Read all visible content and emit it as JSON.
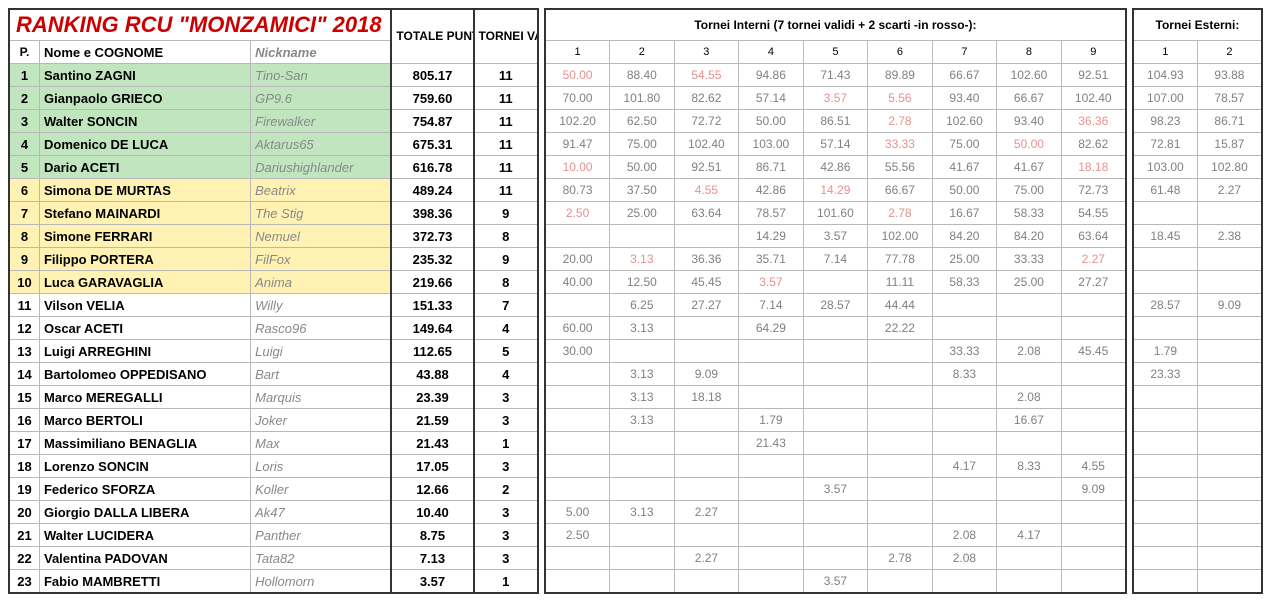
{
  "title": "RANKING RCU \"MONZAMICI\" 2018",
  "headers": {
    "totale_punti": "TOTALE PUNTI",
    "tornei_validi": "TORNEI VALIDI",
    "internal_caption": "Tornei Interni (7 tornei validi + 2 scarti -in rosso-):",
    "external_caption": "Tornei Esterni:",
    "pos": "P.",
    "name": "Nome e COGNOME",
    "nick": "Nickname"
  },
  "internal_cols": [
    "1",
    "2",
    "3",
    "4",
    "5",
    "6",
    "7",
    "8",
    "9"
  ],
  "external_cols": [
    "1",
    "2"
  ],
  "colors": {
    "title": "#cc0000",
    "green_bg": "#c1e6bf",
    "yellow_bg": "#fff2b3",
    "grey_text": "#808080",
    "scarto_text": "#e89090",
    "nick_text": "#888888",
    "border": "#b8b8b8"
  },
  "rows": [
    {
      "p": 1,
      "name": "Santino ZAGNI",
      "nick": "Tino-San",
      "pts": "805.17",
      "validi": "11",
      "hl": "green",
      "int": [
        {
          "v": "50.00",
          "s": 1
        },
        {
          "v": "88.40"
        },
        {
          "v": "54.55",
          "s": 1
        },
        {
          "v": "94.86"
        },
        {
          "v": "71.43"
        },
        {
          "v": "89.89"
        },
        {
          "v": "66.67"
        },
        {
          "v": "102.60"
        },
        {
          "v": "92.51"
        }
      ],
      "ext": [
        {
          "v": "104.93"
        },
        {
          "v": "93.88"
        }
      ]
    },
    {
      "p": 2,
      "name": "Gianpaolo GRIECO",
      "nick": "GP9.6",
      "pts": "759.60",
      "validi": "11",
      "hl": "green",
      "int": [
        {
          "v": "70.00"
        },
        {
          "v": "101.80"
        },
        {
          "v": "82.62"
        },
        {
          "v": "57.14"
        },
        {
          "v": "3.57",
          "s": 1
        },
        {
          "v": "5.56",
          "s": 1
        },
        {
          "v": "93.40"
        },
        {
          "v": "66.67"
        },
        {
          "v": "102.40"
        }
      ],
      "ext": [
        {
          "v": "107.00"
        },
        {
          "v": "78.57"
        }
      ]
    },
    {
      "p": 3,
      "name": "Walter SONCIN",
      "nick": "Firewalker",
      "pts": "754.87",
      "validi": "11",
      "hl": "green",
      "int": [
        {
          "v": "102.20"
        },
        {
          "v": "62.50"
        },
        {
          "v": "72.72"
        },
        {
          "v": "50.00"
        },
        {
          "v": "86.51"
        },
        {
          "v": "2.78",
          "s": 1
        },
        {
          "v": "102.60"
        },
        {
          "v": "93.40"
        },
        {
          "v": "36.36",
          "s": 1
        }
      ],
      "ext": [
        {
          "v": "98.23"
        },
        {
          "v": "86.71"
        }
      ]
    },
    {
      "p": 4,
      "name": "Domenico DE LUCA",
      "nick": "Aktarus65",
      "pts": "675.31",
      "validi": "11",
      "hl": "green",
      "int": [
        {
          "v": "91.47"
        },
        {
          "v": "75.00"
        },
        {
          "v": "102.40"
        },
        {
          "v": "103.00"
        },
        {
          "v": "57.14"
        },
        {
          "v": "33.33",
          "s": 1
        },
        {
          "v": "75.00"
        },
        {
          "v": "50.00",
          "s": 1
        },
        {
          "v": "82.62"
        }
      ],
      "ext": [
        {
          "v": "72.81"
        },
        {
          "v": "15.87"
        }
      ]
    },
    {
      "p": 5,
      "name": "Dario ACETI",
      "nick": "Dariushighlander",
      "pts": "616.78",
      "validi": "11",
      "hl": "green",
      "int": [
        {
          "v": "10.00",
          "s": 1
        },
        {
          "v": "50.00"
        },
        {
          "v": "92.51"
        },
        {
          "v": "86.71"
        },
        {
          "v": "42.86"
        },
        {
          "v": "55.56"
        },
        {
          "v": "41.67"
        },
        {
          "v": "41.67"
        },
        {
          "v": "18.18",
          "s": 1
        }
      ],
      "ext": [
        {
          "v": "103.00"
        },
        {
          "v": "102.80"
        }
      ]
    },
    {
      "p": 6,
      "name": "Simona DE MURTAS",
      "nick": "Beatrix",
      "pts": "489.24",
      "validi": "11",
      "hl": "yellow",
      "int": [
        {
          "v": "80.73"
        },
        {
          "v": "37.50"
        },
        {
          "v": "4.55",
          "s": 1
        },
        {
          "v": "42.86"
        },
        {
          "v": "14.29",
          "s": 1
        },
        {
          "v": "66.67"
        },
        {
          "v": "50.00"
        },
        {
          "v": "75.00"
        },
        {
          "v": "72.73"
        }
      ],
      "ext": [
        {
          "v": "61.48"
        },
        {
          "v": "2.27"
        }
      ]
    },
    {
      "p": 7,
      "name": "Stefano MAINARDI",
      "nick": "The Stig",
      "pts": "398.36",
      "validi": "9",
      "hl": "yellow",
      "int": [
        {
          "v": "2.50",
          "s": 1
        },
        {
          "v": "25.00"
        },
        {
          "v": "63.64"
        },
        {
          "v": "78.57"
        },
        {
          "v": "101.60"
        },
        {
          "v": "2.78",
          "s": 1
        },
        {
          "v": "16.67"
        },
        {
          "v": "58.33"
        },
        {
          "v": "54.55"
        }
      ],
      "ext": [
        {
          "v": ""
        },
        {
          "v": ""
        }
      ]
    },
    {
      "p": 8,
      "name": "Simone FERRARI",
      "nick": "Nemuel",
      "pts": "372.73",
      "validi": "8",
      "hl": "yellow",
      "int": [
        {
          "v": ""
        },
        {
          "v": ""
        },
        {
          "v": ""
        },
        {
          "v": "14.29"
        },
        {
          "v": "3.57"
        },
        {
          "v": "102.00"
        },
        {
          "v": "84.20"
        },
        {
          "v": "84.20"
        },
        {
          "v": "63.64"
        }
      ],
      "ext": [
        {
          "v": "18.45"
        },
        {
          "v": "2.38"
        }
      ]
    },
    {
      "p": 9,
      "name": "Filippo PORTERA",
      "nick": "FilFox",
      "pts": "235.32",
      "validi": "9",
      "hl": "yellow",
      "int": [
        {
          "v": "20.00"
        },
        {
          "v": "3.13",
          "s": 1
        },
        {
          "v": "36.36"
        },
        {
          "v": "35.71"
        },
        {
          "v": "7.14"
        },
        {
          "v": "77.78"
        },
        {
          "v": "25.00"
        },
        {
          "v": "33.33"
        },
        {
          "v": "2.27",
          "s": 1
        }
      ],
      "ext": [
        {
          "v": ""
        },
        {
          "v": ""
        }
      ]
    },
    {
      "p": 10,
      "name": "Luca GARAVAGLIA",
      "nick": "Anima",
      "pts": "219.66",
      "validi": "8",
      "hl": "yellow",
      "int": [
        {
          "v": "40.00"
        },
        {
          "v": "12.50"
        },
        {
          "v": "45.45"
        },
        {
          "v": "3.57",
          "s": 1
        },
        {
          "v": ""
        },
        {
          "v": "11.11"
        },
        {
          "v": "58.33"
        },
        {
          "v": "25.00"
        },
        {
          "v": "27.27"
        }
      ],
      "ext": [
        {
          "v": ""
        },
        {
          "v": ""
        }
      ]
    },
    {
      "p": 11,
      "name": "Vilson VELIA",
      "nick": "Willy",
      "pts": "151.33",
      "validi": "7",
      "hl": "",
      "int": [
        {
          "v": ""
        },
        {
          "v": "6.25"
        },
        {
          "v": "27.27"
        },
        {
          "v": "7.14"
        },
        {
          "v": "28.57"
        },
        {
          "v": "44.44"
        },
        {
          "v": ""
        },
        {
          "v": ""
        },
        {
          "v": ""
        }
      ],
      "ext": [
        {
          "v": "28.57"
        },
        {
          "v": "9.09"
        }
      ]
    },
    {
      "p": 12,
      "name": "Oscar ACETI",
      "nick": "Rasco96",
      "pts": "149.64",
      "validi": "4",
      "hl": "",
      "int": [
        {
          "v": "60.00"
        },
        {
          "v": "3.13"
        },
        {
          "v": ""
        },
        {
          "v": "64.29"
        },
        {
          "v": ""
        },
        {
          "v": "22.22"
        },
        {
          "v": ""
        },
        {
          "v": ""
        },
        {
          "v": ""
        }
      ],
      "ext": [
        {
          "v": ""
        },
        {
          "v": ""
        }
      ]
    },
    {
      "p": 13,
      "name": "Luigi ARREGHINI",
      "nick": "Luigi",
      "pts": "112.65",
      "validi": "5",
      "hl": "",
      "int": [
        {
          "v": "30.00"
        },
        {
          "v": ""
        },
        {
          "v": ""
        },
        {
          "v": ""
        },
        {
          "v": ""
        },
        {
          "v": ""
        },
        {
          "v": "33.33"
        },
        {
          "v": "2.08"
        },
        {
          "v": "45.45"
        }
      ],
      "ext": [
        {
          "v": "1.79"
        },
        {
          "v": ""
        }
      ]
    },
    {
      "p": 14,
      "name": "Bartolomeo OPPEDISANO",
      "nick": "Bart",
      "pts": "43.88",
      "validi": "4",
      "hl": "",
      "int": [
        {
          "v": ""
        },
        {
          "v": "3.13"
        },
        {
          "v": "9.09"
        },
        {
          "v": ""
        },
        {
          "v": ""
        },
        {
          "v": ""
        },
        {
          "v": "8.33"
        },
        {
          "v": ""
        },
        {
          "v": ""
        }
      ],
      "ext": [
        {
          "v": "23.33"
        },
        {
          "v": ""
        }
      ]
    },
    {
      "p": 15,
      "name": "Marco MEREGALLI",
      "nick": "Marquis",
      "pts": "23.39",
      "validi": "3",
      "hl": "",
      "int": [
        {
          "v": ""
        },
        {
          "v": "3.13"
        },
        {
          "v": "18.18"
        },
        {
          "v": ""
        },
        {
          "v": ""
        },
        {
          "v": ""
        },
        {
          "v": ""
        },
        {
          "v": "2.08"
        },
        {
          "v": ""
        }
      ],
      "ext": [
        {
          "v": ""
        },
        {
          "v": ""
        }
      ]
    },
    {
      "p": 16,
      "name": "Marco BERTOLI",
      "nick": "Joker",
      "pts": "21.59",
      "validi": "3",
      "hl": "",
      "int": [
        {
          "v": ""
        },
        {
          "v": "3.13"
        },
        {
          "v": ""
        },
        {
          "v": "1.79"
        },
        {
          "v": ""
        },
        {
          "v": ""
        },
        {
          "v": ""
        },
        {
          "v": "16.67"
        },
        {
          "v": ""
        }
      ],
      "ext": [
        {
          "v": ""
        },
        {
          "v": ""
        }
      ]
    },
    {
      "p": 17,
      "name": "Massimiliano BENAGLIA",
      "nick": "Max",
      "pts": "21.43",
      "validi": "1",
      "hl": "",
      "int": [
        {
          "v": ""
        },
        {
          "v": ""
        },
        {
          "v": ""
        },
        {
          "v": "21.43"
        },
        {
          "v": ""
        },
        {
          "v": ""
        },
        {
          "v": ""
        },
        {
          "v": ""
        },
        {
          "v": ""
        }
      ],
      "ext": [
        {
          "v": ""
        },
        {
          "v": ""
        }
      ]
    },
    {
      "p": 18,
      "name": "Lorenzo SONCIN",
      "nick": "Loris",
      "pts": "17.05",
      "validi": "3",
      "hl": "",
      "int": [
        {
          "v": ""
        },
        {
          "v": ""
        },
        {
          "v": ""
        },
        {
          "v": ""
        },
        {
          "v": ""
        },
        {
          "v": ""
        },
        {
          "v": "4.17"
        },
        {
          "v": "8.33"
        },
        {
          "v": "4.55"
        }
      ],
      "ext": [
        {
          "v": ""
        },
        {
          "v": ""
        }
      ]
    },
    {
      "p": 19,
      "name": "Federico SFORZA",
      "nick": "Koller",
      "pts": "12.66",
      "validi": "2",
      "hl": "",
      "int": [
        {
          "v": ""
        },
        {
          "v": ""
        },
        {
          "v": ""
        },
        {
          "v": ""
        },
        {
          "v": "3.57"
        },
        {
          "v": ""
        },
        {
          "v": ""
        },
        {
          "v": ""
        },
        {
          "v": "9.09"
        }
      ],
      "ext": [
        {
          "v": ""
        },
        {
          "v": ""
        }
      ]
    },
    {
      "p": 20,
      "name": "Giorgio DALLA LIBERA",
      "nick": "Ak47",
      "pts": "10.40",
      "validi": "3",
      "hl": "",
      "int": [
        {
          "v": "5.00"
        },
        {
          "v": "3.13"
        },
        {
          "v": "2.27"
        },
        {
          "v": ""
        },
        {
          "v": ""
        },
        {
          "v": ""
        },
        {
          "v": ""
        },
        {
          "v": ""
        },
        {
          "v": ""
        }
      ],
      "ext": [
        {
          "v": ""
        },
        {
          "v": ""
        }
      ]
    },
    {
      "p": 21,
      "name": "Walter LUCIDERA",
      "nick": "Panther",
      "pts": "8.75",
      "validi": "3",
      "hl": "",
      "int": [
        {
          "v": "2.50"
        },
        {
          "v": ""
        },
        {
          "v": ""
        },
        {
          "v": ""
        },
        {
          "v": ""
        },
        {
          "v": ""
        },
        {
          "v": "2.08"
        },
        {
          "v": "4.17"
        },
        {
          "v": ""
        }
      ],
      "ext": [
        {
          "v": ""
        },
        {
          "v": ""
        }
      ]
    },
    {
      "p": 22,
      "name": "Valentina PADOVAN",
      "nick": "Tata82",
      "pts": "7.13",
      "validi": "3",
      "hl": "",
      "int": [
        {
          "v": ""
        },
        {
          "v": ""
        },
        {
          "v": "2.27"
        },
        {
          "v": ""
        },
        {
          "v": ""
        },
        {
          "v": "2.78"
        },
        {
          "v": "2.08"
        },
        {
          "v": ""
        },
        {
          "v": ""
        }
      ],
      "ext": [
        {
          "v": ""
        },
        {
          "v": ""
        }
      ]
    },
    {
      "p": 23,
      "name": "Fabio MAMBRETTI",
      "nick": "Hollomorn",
      "pts": "3.57",
      "validi": "1",
      "hl": "",
      "int": [
        {
          "v": ""
        },
        {
          "v": ""
        },
        {
          "v": ""
        },
        {
          "v": ""
        },
        {
          "v": "3.57"
        },
        {
          "v": ""
        },
        {
          "v": ""
        },
        {
          "v": ""
        },
        {
          "v": ""
        }
      ],
      "ext": [
        {
          "v": ""
        },
        {
          "v": ""
        }
      ]
    }
  ]
}
